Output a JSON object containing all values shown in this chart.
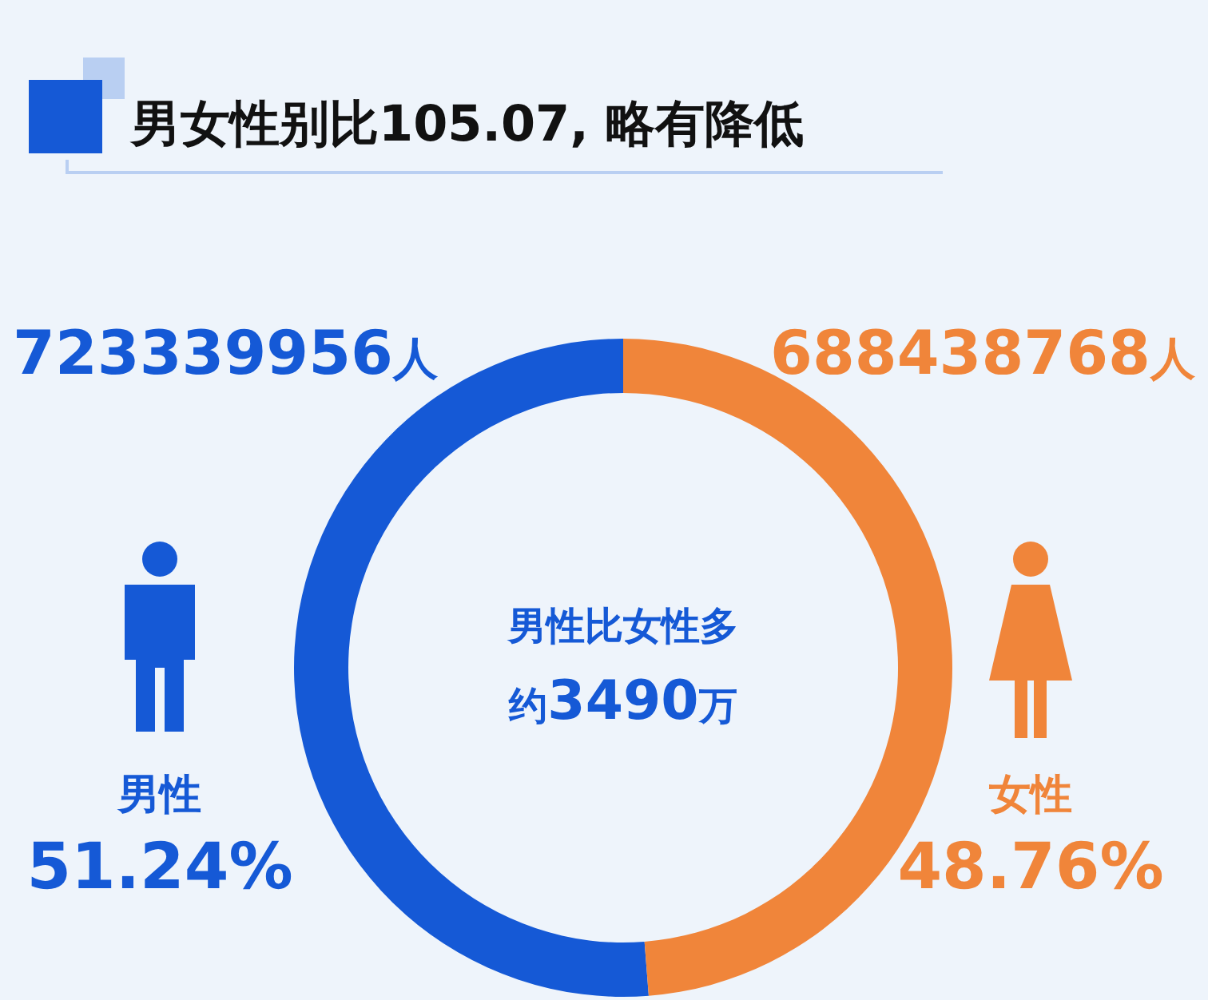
{
  "chart_data": {
    "type": "donut",
    "title": "男女性别比105.07, 略有降低",
    "categories": [
      "男性",
      "女性"
    ],
    "values": [
      723339956,
      688438768
    ],
    "colors": [
      "#1559d6",
      "#f0853a"
    ],
    "value_labels": [
      "723339956人",
      "688438768人"
    ],
    "annotations": [
      "51.24%",
      "48.76%",
      "男性比女性多",
      "约3490万"
    ]
  }
}
